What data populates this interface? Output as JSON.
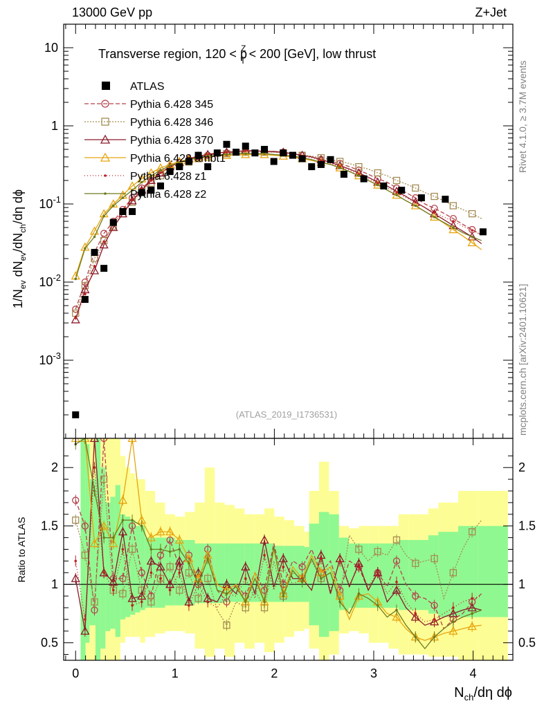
{
  "header": {
    "left_label": "13000 GeV pp",
    "right_label": "Z+Jet",
    "side_label_right": "Rivet 4.1.0, ≥ 3.7M events",
    "side_label_mcplots": "mcplots.cern.ch [arXiv:2401.10621]",
    "analysis_id": "(ATLAS_2019_I1736531)"
  },
  "colors": {
    "atlas": "#000000",
    "p345": "#b4424b",
    "p346": "#a48c52",
    "p370": "#8b1a2a",
    "ambt1": "#e6a510",
    "z1": "#bd1f1f",
    "z2": "#6e7a1e",
    "band_green": "#90f890",
    "band_yellow": "#fdfd95"
  },
  "chart_data": {
    "type": "line",
    "title_parts": {
      "prefix": "Transverse region, 120 < p",
      "sup": "Z",
      "sub": "T",
      "suffix": " < 200 [GeV], low thrust"
    },
    "xlabel": "Nch/dη dϕ",
    "ylabel": "1/Nev dNev/dNch/dη dϕ",
    "ratio_ylabel": "Ratio to ATLAS",
    "xlim": [
      -0.12,
      4.4
    ],
    "ylim": [
      0.0001,
      20
    ],
    "ratio_ylim": [
      0.35,
      2.25
    ],
    "x_ticks": [
      "0",
      "1",
      "2",
      "3",
      "4"
    ],
    "y_ticks": [
      "10",
      "1",
      "10^-1",
      "10^-2",
      "10^-3"
    ],
    "ratio_ticks": [
      "2",
      "1.5",
      "1",
      "0.5"
    ],
    "x": [
      0,
      0.095,
      0.19,
      0.285,
      0.38,
      0.475,
      0.57,
      0.665,
      0.76,
      0.855,
      0.95,
      1.045,
      1.14,
      1.235,
      1.33,
      1.425,
      1.52,
      1.615,
      1.71,
      1.805,
      1.9,
      1.995,
      2.09,
      2.185,
      2.28,
      2.375,
      2.47,
      2.565,
      2.66,
      2.755,
      2.85,
      2.945,
      3.04,
      3.135,
      3.23,
      3.325,
      3.42,
      3.515,
      3.61,
      3.705,
      3.8,
      3.895,
      3.99,
      4.085
    ],
    "atlas_x": [
      0,
      0.095,
      0.19,
      0.285,
      0.38,
      0.475,
      0.57,
      0.665,
      0.76,
      0.855,
      0.95,
      1.045,
      1.14,
      1.235,
      1.33,
      1.425,
      1.52,
      1.615,
      1.71,
      1.805,
      1.9,
      1.995,
      2.09,
      2.185,
      2.28,
      2.375,
      2.47,
      2.565,
      2.7,
      2.9,
      3.1,
      3.28,
      3.48,
      3.72,
      4.1
    ],
    "atlas_y": [
      0.0002,
      0.006,
      0.024,
      0.015,
      0.058,
      0.08,
      0.08,
      0.14,
      0.15,
      0.17,
      0.26,
      0.3,
      0.35,
      0.42,
      0.3,
      0.45,
      0.58,
      0.46,
      0.55,
      0.45,
      0.5,
      0.35,
      0.45,
      0.42,
      0.38,
      0.3,
      0.32,
      0.37,
      0.24,
      0.21,
      0.17,
      0.15,
      0.12,
      0.115,
      0.044
    ],
    "legend": [
      {
        "key": "atlas",
        "label": "ATLAS"
      },
      {
        "key": "p345",
        "label": "Pythia 6.428 345"
      },
      {
        "key": "p346",
        "label": "Pythia 6.428 346"
      },
      {
        "key": "p370",
        "label": "Pythia 6.428 370"
      },
      {
        "key": "ambt1",
        "label": "Pythia 6.428 ambt1"
      },
      {
        "key": "z1",
        "label": "Pythia 6.428 z1"
      },
      {
        "key": "z2",
        "label": "Pythia 6.428 z2"
      }
    ],
    "series": [
      {
        "key": "p345",
        "name": "Pythia 6.428 345",
        "values": [
          0.0045,
          0.01,
          0.024,
          0.042,
          0.06,
          0.085,
          0.12,
          0.16,
          0.2,
          0.25,
          0.3,
          0.34,
          0.37,
          0.4,
          0.42,
          0.44,
          0.45,
          0.46,
          0.47,
          0.48,
          0.47,
          0.47,
          0.46,
          0.44,
          0.42,
          0.4,
          0.37,
          0.35,
          0.33,
          0.3,
          0.27,
          0.24,
          0.21,
          0.19,
          0.16,
          0.14,
          0.12,
          0.1,
          0.088,
          0.076,
          0.065,
          0.055,
          0.047,
          0.04
        ],
        "ratio": [
          1.72,
          1.5,
          0.78,
          2.4,
          1.05,
          1.05,
          1.5,
          1.1,
          0.9,
          1.25,
          1.38,
          1.15,
          1.25,
          1.0,
          1.3,
          0.95,
          0.85,
          1.0,
          0.9,
          1.1,
          0.95,
          1.35,
          1.0,
          1.2,
          1.15,
          1.3,
          1.1,
          1.2,
          0.95,
          1.2,
          1.15,
          0.95,
          1.1,
          0.98,
          1.2,
          1.0,
          0.9,
          0.88,
          0.82,
          0.62,
          0.7,
          0.75,
          0.85,
          0.92
        ]
      },
      {
        "key": "p346",
        "name": "Pythia 6.428 346",
        "values": [
          0.004,
          0.009,
          0.02,
          0.034,
          0.052,
          0.075,
          0.105,
          0.145,
          0.185,
          0.23,
          0.27,
          0.31,
          0.345,
          0.38,
          0.4,
          0.42,
          0.44,
          0.45,
          0.46,
          0.46,
          0.46,
          0.46,
          0.45,
          0.44,
          0.42,
          0.41,
          0.39,
          0.37,
          0.35,
          0.33,
          0.3,
          0.28,
          0.25,
          0.23,
          0.2,
          0.18,
          0.16,
          0.14,
          0.125,
          0.11,
          0.095,
          0.085,
          0.075,
          0.065
        ],
        "ratio": [
          1.55,
          1.25,
          0.85,
          1.9,
          0.95,
          0.92,
          1.3,
          0.95,
          0.85,
          1.05,
          1.15,
          0.95,
          1.1,
          0.88,
          1.05,
          0.78,
          0.65,
          0.85,
          0.8,
          0.95,
          0.8,
          1.2,
          0.9,
          1.1,
          1.05,
          1.2,
          1.05,
          1.15,
          0.9,
          1.42,
          1.3,
          1.2,
          1.28,
          1.25,
          1.38,
          1.25,
          1.18,
          1.2,
          1.22,
          0.88,
          1.1,
          1.3,
          1.45,
          1.55
        ]
      },
      {
        "key": "p370",
        "name": "Pythia 6.428 370",
        "values": [
          0.0033,
          0.008,
          0.014,
          0.03,
          0.05,
          0.075,
          0.11,
          0.15,
          0.2,
          0.25,
          0.3,
          0.34,
          0.38,
          0.41,
          0.43,
          0.45,
          0.46,
          0.47,
          0.48,
          0.48,
          0.47,
          0.47,
          0.46,
          0.44,
          0.42,
          0.4,
          0.37,
          0.34,
          0.31,
          0.28,
          0.25,
          0.22,
          0.19,
          0.17,
          0.145,
          0.125,
          0.105,
          0.09,
          0.075,
          0.063,
          0.053,
          0.045,
          0.038,
          0.031
        ],
        "ratio": [
          1.05,
          0.6,
          2.35,
          1.1,
          1.02,
          1.45,
          0.88,
          0.9,
          1.2,
          1.15,
          1.0,
          1.2,
          0.85,
          1.1,
          0.88,
          0.85,
          1.0,
          0.92,
          1.15,
          0.92,
          1.38,
          0.98,
          1.22,
          1.05,
          1.05,
          0.95,
          1.25,
          0.92,
          1.22,
          0.98,
          1.18,
          0.95,
          1.1,
          0.85,
          0.95,
          0.8,
          0.72,
          0.65,
          0.68,
          0.72,
          0.75,
          0.78,
          0.8,
          0.78
        ]
      },
      {
        "key": "ambt1",
        "name": "Pythia 6.428 ambt1",
        "values": [
          0.012,
          0.028,
          0.045,
          0.075,
          0.1,
          0.13,
          0.17,
          0.21,
          0.25,
          0.29,
          0.32,
          0.35,
          0.37,
          0.39,
          0.4,
          0.41,
          0.42,
          0.42,
          0.43,
          0.43,
          0.43,
          0.42,
          0.41,
          0.4,
          0.38,
          0.36,
          0.34,
          0.32,
          0.29,
          0.26,
          0.23,
          0.2,
          0.175,
          0.15,
          0.13,
          0.11,
          0.095,
          0.08,
          0.068,
          0.057,
          0.047,
          0.039,
          0.032,
          0.026
        ],
        "ratio": [
          2.3,
          2.4,
          1.35,
          1.5,
          1.35,
          1.72,
          2.25,
          1.55,
          1.4,
          1.45,
          1.45,
          1.38,
          1.22,
          1.05,
          1.25,
          1.0,
          0.95,
          1.0,
          0.85,
          1.1,
          0.85,
          1.3,
          0.92,
          1.15,
          1.05,
          1.25,
          1.1,
          1.15,
          0.9,
          0.7,
          0.9,
          0.92,
          0.85,
          0.75,
          0.72,
          0.62,
          0.55,
          0.52,
          0.55,
          0.58,
          0.6,
          0.62,
          0.64,
          0.65
        ]
      },
      {
        "key": "z1",
        "name": "Pythia 6.428 z1",
        "values": [
          0.0035,
          0.007,
          0.016,
          0.033,
          0.055,
          0.08,
          0.115,
          0.155,
          0.2,
          0.25,
          0.3,
          0.34,
          0.38,
          0.41,
          0.43,
          0.45,
          0.46,
          0.47,
          0.48,
          0.48,
          0.47,
          0.46,
          0.45,
          0.43,
          0.41,
          0.39,
          0.36,
          0.33,
          0.3,
          0.27,
          0.24,
          0.21,
          0.185,
          0.16,
          0.14,
          0.12,
          0.105,
          0.09,
          0.078,
          0.068,
          0.06,
          0.052,
          0.046,
          0.04
        ],
        "ratio": [
          1.2,
          0.7,
          2.0,
          1.1,
          0.95,
          1.3,
          0.82,
          0.85,
          1.1,
          1.05,
          0.95,
          1.1,
          0.82,
          1.0,
          0.85,
          0.8,
          0.92,
          0.9,
          1.05,
          0.88,
          1.25,
          0.95,
          1.15,
          1.0,
          1.05,
          0.95,
          1.22,
          0.95,
          1.2,
          1.0,
          1.15,
          0.98,
          1.1,
          0.92,
          1.02,
          0.85,
          0.75,
          0.68,
          0.7,
          0.75,
          0.8,
          0.85,
          0.88,
          0.9
        ]
      },
      {
        "key": "z2",
        "name": "Pythia 6.428 z2",
        "values": [
          0.011,
          0.027,
          0.038,
          0.07,
          0.095,
          0.12,
          0.15,
          0.19,
          0.23,
          0.27,
          0.31,
          0.34,
          0.37,
          0.39,
          0.41,
          0.42,
          0.43,
          0.44,
          0.44,
          0.44,
          0.44,
          0.43,
          0.42,
          0.41,
          0.39,
          0.37,
          0.34,
          0.32,
          0.29,
          0.26,
          0.23,
          0.2,
          0.175,
          0.15,
          0.13,
          0.11,
          0.095,
          0.08,
          0.068,
          0.058,
          0.05,
          0.043,
          0.038,
          0.034
        ],
        "ratio": [
          2.2,
          2.3,
          1.8,
          1.4,
          1.4,
          1.55,
          1.55,
          1.5,
          1.3,
          1.3,
          1.28,
          1.3,
          1.18,
          1.0,
          1.22,
          0.95,
          0.92,
          0.98,
          0.85,
          1.05,
          0.85,
          1.32,
          0.9,
          1.12,
          1.02,
          1.22,
          1.05,
          1.1,
          0.85,
          0.75,
          0.92,
          0.88,
          0.82,
          0.72,
          0.78,
          0.65,
          0.55,
          0.45,
          0.55,
          0.62,
          0.68,
          0.72,
          0.75,
          0.78
        ]
      }
    ],
    "band_edges": [
      0.05,
      0.1,
      0.14,
      0.2,
      0.25,
      0.3,
      0.35,
      0.4,
      0.45,
      0.5,
      0.55,
      0.6,
      0.65,
      0.7,
      0.8,
      0.9,
      1.0,
      1.1,
      1.2,
      1.3,
      1.4,
      1.5,
      1.6,
      1.7,
      1.8,
      1.9,
      2.0,
      2.1,
      2.2,
      2.3,
      2.35,
      2.45,
      2.55,
      2.65,
      2.75,
      2.85,
      2.95,
      3.05,
      3.15,
      3.25,
      3.35,
      3.55,
      3.65,
      3.85,
      4.05,
      4.35
    ],
    "band_green": [
      [
        0.35,
        2.25
      ],
      [
        0.5,
        2.2
      ],
      [
        0.65,
        1.9
      ],
      [
        0.35,
        2.25
      ],
      [
        0.45,
        2.0
      ],
      [
        0.6,
        1.7
      ],
      [
        0.62,
        1.75
      ],
      [
        0.55,
        1.85
      ],
      [
        0.7,
        1.6
      ],
      [
        0.72,
        1.58
      ],
      [
        0.74,
        1.55
      ],
      [
        0.76,
        1.5
      ],
      [
        0.78,
        1.5
      ],
      [
        0.8,
        1.4
      ],
      [
        0.8,
        1.4
      ],
      [
        0.82,
        1.4
      ],
      [
        0.82,
        1.38
      ],
      [
        0.82,
        1.38
      ],
      [
        0.84,
        1.35
      ],
      [
        0.84,
        1.35
      ],
      [
        0.84,
        1.35
      ],
      [
        0.85,
        1.35
      ],
      [
        0.85,
        1.35
      ],
      [
        0.85,
        1.35
      ],
      [
        0.85,
        1.35
      ],
      [
        0.85,
        1.35
      ],
      [
        0.85,
        1.33
      ],
      [
        0.85,
        1.33
      ],
      [
        0.85,
        1.33
      ],
      [
        0.85,
        1.32
      ],
      [
        0.65,
        1.52
      ],
      [
        0.55,
        1.62
      ],
      [
        0.6,
        1.6
      ],
      [
        0.78,
        1.4
      ],
      [
        0.8,
        1.35
      ],
      [
        0.8,
        1.35
      ],
      [
        0.8,
        1.35
      ],
      [
        0.8,
        1.35
      ],
      [
        0.8,
        1.35
      ],
      [
        0.78,
        1.38
      ],
      [
        0.78,
        1.38
      ],
      [
        0.75,
        1.42
      ],
      [
        0.72,
        1.45
      ],
      [
        0.72,
        1.5
      ],
      [
        0.72,
        1.5
      ]
    ],
    "band_yellow": [
      [
        0.35,
        2.25
      ],
      [
        0.35,
        2.25
      ],
      [
        0.35,
        2.25
      ],
      [
        0.35,
        2.25
      ],
      [
        0.35,
        2.25
      ],
      [
        0.35,
        2.25
      ],
      [
        0.35,
        2.25
      ],
      [
        0.35,
        2.25
      ],
      [
        0.5,
        2.1
      ],
      [
        0.55,
        2.0
      ],
      [
        0.55,
        1.95
      ],
      [
        0.55,
        1.9
      ],
      [
        0.5,
        1.9
      ],
      [
        0.55,
        1.8
      ],
      [
        0.58,
        1.7
      ],
      [
        0.6,
        1.6
      ],
      [
        0.6,
        1.58
      ],
      [
        0.58,
        1.62
      ],
      [
        0.45,
        1.7
      ],
      [
        0.38,
        2.0
      ],
      [
        0.45,
        1.7
      ],
      [
        0.38,
        1.68
      ],
      [
        0.5,
        1.65
      ],
      [
        0.45,
        1.6
      ],
      [
        0.5,
        1.6
      ],
      [
        0.42,
        1.65
      ],
      [
        0.5,
        1.58
      ],
      [
        0.55,
        1.55
      ],
      [
        0.6,
        1.5
      ],
      [
        0.62,
        1.45
      ],
      [
        0.45,
        1.8
      ],
      [
        0.35,
        2.05
      ],
      [
        0.4,
        1.8
      ],
      [
        0.58,
        1.5
      ],
      [
        0.6,
        1.48
      ],
      [
        0.58,
        1.5
      ],
      [
        0.5,
        1.5
      ],
      [
        0.5,
        1.5
      ],
      [
        0.45,
        1.5
      ],
      [
        0.4,
        1.6
      ],
      [
        0.4,
        1.6
      ],
      [
        0.38,
        1.65
      ],
      [
        0.38,
        1.7
      ],
      [
        0.35,
        1.8
      ],
      [
        0.35,
        1.8
      ]
    ]
  }
}
